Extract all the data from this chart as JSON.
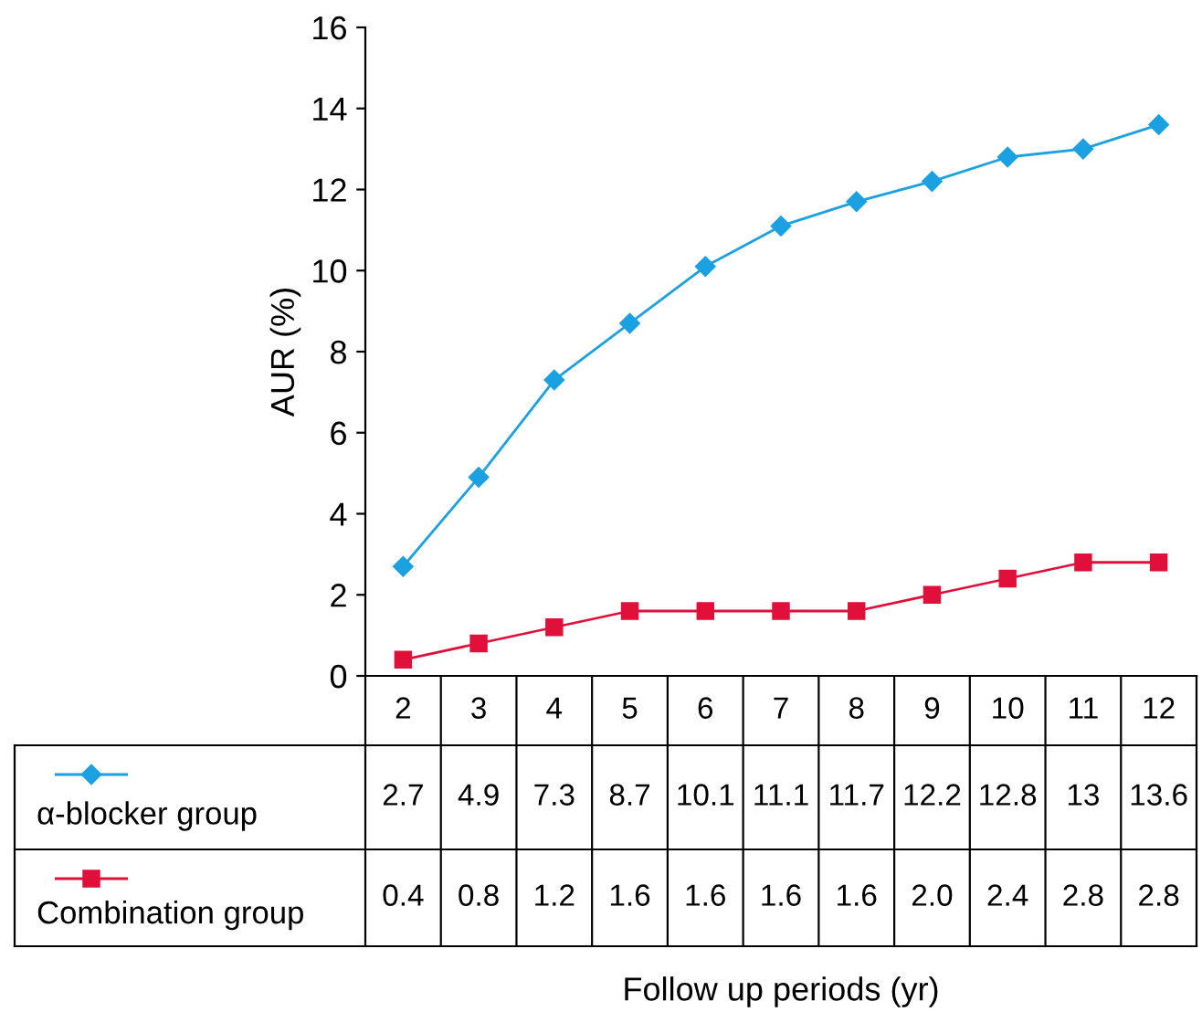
{
  "chart_data": {
    "type": "line",
    "annotations": [
      "Follow up periods (yr)"
    ],
    "ylabel": "AUR (%)",
    "categories": [
      "2",
      "3",
      "4",
      "5",
      "6",
      "7",
      "8",
      "9",
      "10",
      "11",
      "12"
    ],
    "ylim": [
      0,
      16
    ],
    "yticks": [
      0,
      2,
      4,
      6,
      8,
      10,
      12,
      14,
      16
    ],
    "grid": false,
    "legend": "bottom",
    "series": [
      {
        "name": "α-blocker group",
        "color": "#1ba1e2",
        "marker": "diamond",
        "values": [
          2.7,
          4.9,
          7.3,
          8.7,
          10.1,
          11.1,
          11.7,
          12.2,
          12.8,
          13,
          13.6
        ],
        "value_labels": [
          "2.7",
          "4.9",
          "7.3",
          "8.7",
          "10.1",
          "11.1",
          "11.7",
          "12.2",
          "12.8",
          "13",
          "13.6"
        ]
      },
      {
        "name": "Combination group",
        "color": "#e0103a",
        "marker": "square",
        "values": [
          0.4,
          0.8,
          1.2,
          1.6,
          1.6,
          1.6,
          1.6,
          2.0,
          2.4,
          2.8,
          2.8
        ],
        "value_labels": [
          "0.4",
          "0.8",
          "1.2",
          "1.6",
          "1.6",
          "1.6",
          "1.6",
          "2.0",
          "2.4",
          "2.8",
          "2.8"
        ]
      }
    ]
  }
}
